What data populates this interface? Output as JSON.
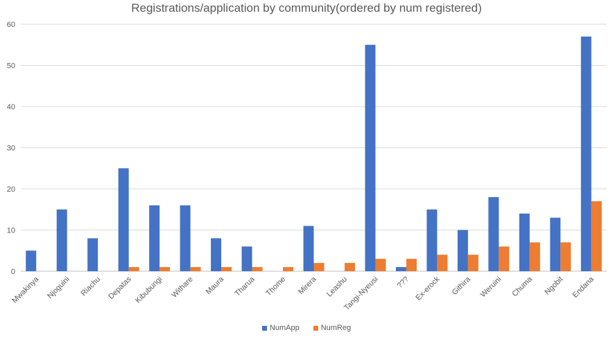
{
  "chart_data": {
    "type": "bar",
    "title": "Registrations/application by community(ordered by num registered)",
    "categories": [
      "Mwakinya",
      "Njoguini",
      "Riachu",
      "Depatas",
      "Kibubungi",
      "Withare",
      "Maura",
      "Tharua",
      "Thome",
      "Mirera",
      "Leashu",
      "Tangi-Nyeusi",
      "???",
      "Ex-erock",
      "Githira",
      "Weruini",
      "Chuma",
      "Ngobit",
      "Endana"
    ],
    "series": [
      {
        "name": "NumApp",
        "color": "#4472C4",
        "values": [
          5,
          15,
          8,
          25,
          16,
          16,
          8,
          6,
          0,
          11,
          0,
          55,
          1,
          15,
          10,
          18,
          14,
          13,
          57
        ]
      },
      {
        "name": "NumReg",
        "color": "#ED7D31",
        "values": [
          0,
          0,
          0,
          1,
          1,
          1,
          1,
          1,
          1,
          2,
          2,
          3,
          3,
          4,
          4,
          6,
          7,
          7,
          17
        ]
      }
    ],
    "ylim": [
      0,
      60
    ],
    "yticks": [
      0,
      10,
      20,
      30,
      40,
      50,
      60
    ],
    "grid": true,
    "legend_position": "bottom"
  }
}
